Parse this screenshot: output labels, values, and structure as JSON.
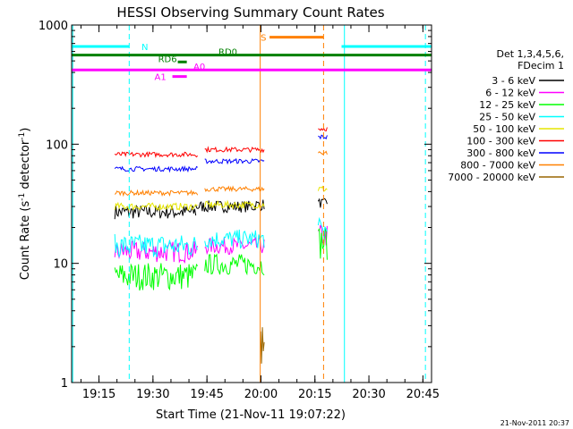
{
  "chart_data": {
    "type": "line",
    "title": "HESSI Observing Summary Count Rates",
    "xlabel": "Start Time (21-Nov-11 19:07:22)",
    "ylabel_main": "Count Rate (s",
    "ylabel_sup1": "-1",
    "ylabel_mid": " detector",
    "ylabel_sup2": "-1",
    "ylabel_end": ")",
    "yscale": "log",
    "ylim": [
      1,
      1000
    ],
    "xlim_minutes": [
      0,
      100
    ],
    "x_unit": "minutes after 19:07:22",
    "x_ticks": [
      {
        "value": 7.6,
        "label": "19:15"
      },
      {
        "value": 22.6,
        "label": "19:30"
      },
      {
        "value": 37.6,
        "label": "19:45"
      },
      {
        "value": 52.6,
        "label": "20:00"
      },
      {
        "value": 67.6,
        "label": "20:15"
      },
      {
        "value": 82.6,
        "label": "20:30"
      },
      {
        "value": 97.6,
        "label": "20:45"
      }
    ],
    "y_ticks": [
      {
        "value": 1,
        "label": "1"
      },
      {
        "value": 10,
        "label": "10"
      },
      {
        "value": 100,
        "label": "100"
      },
      {
        "value": 1000,
        "label": "1000"
      }
    ],
    "legend_header": [
      "Det 1,3,4,5,6,",
      "FDecim 1"
    ],
    "legend_position": "right",
    "series": [
      {
        "name": "3 - 6 keV",
        "color": "#000000",
        "segments": [
          {
            "x0": 12,
            "x1": 34.5,
            "level": 27,
            "noise": 0.06
          },
          {
            "x0": 34.5,
            "x1": 51,
            "level": 30,
            "noise": 0.05
          },
          {
            "x0": 51,
            "x1": 53.5,
            "level": 31,
            "noise": 0.05
          },
          {
            "x0": 68.5,
            "x1": 71,
            "level": 32,
            "noise": 0.04
          }
        ]
      },
      {
        "name": "6 - 12 keV",
        "color": "#ff00ff",
        "segments": [
          {
            "x0": 12,
            "x1": 35,
            "level": 12.5,
            "noise": 0.09
          },
          {
            "x0": 37,
            "x1": 53.5,
            "level": 14,
            "noise": 0.07
          },
          {
            "x0": 68.5,
            "x1": 71,
            "level": 17,
            "noise": 0.1
          }
        ]
      },
      {
        "name": "12 - 25 keV",
        "color": "#00ff00",
        "segments": [
          {
            "x0": 12,
            "x1": 35,
            "level": 7.8,
            "noise": 0.12
          },
          {
            "x0": 37,
            "x1": 53.5,
            "level": 9.8,
            "noise": 0.09
          },
          {
            "x0": 68.5,
            "x1": 71,
            "level": 15,
            "noise": 0.15
          }
        ]
      },
      {
        "name": "25 - 50 keV",
        "color": "#00ffff",
        "segments": [
          {
            "x0": 12,
            "x1": 35,
            "level": 14,
            "noise": 0.1
          },
          {
            "x0": 37,
            "x1": 53.5,
            "level": 16,
            "noise": 0.08
          },
          {
            "x0": 68.5,
            "x1": 71,
            "level": 19,
            "noise": 0.1
          }
        ]
      },
      {
        "name": "50 - 100 keV",
        "color": "#e6e600",
        "segments": [
          {
            "x0": 12,
            "x1": 35,
            "level": 30,
            "noise": 0.03
          },
          {
            "x0": 37,
            "x1": 53.5,
            "level": 31,
            "noise": 0.03
          },
          {
            "x0": 68.5,
            "x1": 71,
            "level": 42,
            "noise": 0.03
          }
        ]
      },
      {
        "name": "100 - 300 keV",
        "color": "#ff0000",
        "segments": [
          {
            "x0": 12,
            "x1": 35,
            "level": 82,
            "noise": 0.02
          },
          {
            "x0": 37,
            "x1": 53.5,
            "level": 90,
            "noise": 0.02
          },
          {
            "x0": 68.5,
            "x1": 71,
            "level": 135,
            "noise": 0.02
          }
        ]
      },
      {
        "name": "300 - 800 keV",
        "color": "#0000ff",
        "segments": [
          {
            "x0": 12,
            "x1": 35,
            "level": 62,
            "noise": 0.02
          },
          {
            "x0": 37,
            "x1": 53.5,
            "level": 72,
            "noise": 0.02
          },
          {
            "x0": 68.5,
            "x1": 71,
            "level": 115,
            "noise": 0.02
          }
        ]
      },
      {
        "name": "800 - 7000 keV",
        "color": "#ff8000",
        "segments": [
          {
            "x0": 12,
            "x1": 35,
            "level": 39,
            "noise": 0.02
          },
          {
            "x0": 37,
            "x1": 53.5,
            "level": 42,
            "noise": 0.02
          },
          {
            "x0": 68.5,
            "x1": 71,
            "level": 85,
            "noise": 0.02
          }
        ]
      },
      {
        "name": "7000 - 20000 keV",
        "color": "#996600",
        "segments": [
          {
            "x0": 52.5,
            "x1": 53.5,
            "level": 2.0,
            "noise": 0.2
          }
        ]
      }
    ],
    "flag_bars": [
      {
        "label": "N",
        "color": "#00ffff",
        "y": 660,
        "segments": [
          [
            0,
            16
          ],
          [
            75,
            100
          ]
        ]
      },
      {
        "label": "S",
        "color": "#ff8000",
        "y": 790,
        "segments": [
          [
            55,
            70
          ]
        ]
      },
      {
        "label": "RD0",
        "color": "#008000",
        "y": 560,
        "segments": [
          [
            0,
            100
          ]
        ]
      },
      {
        "label": "RD6",
        "color": "#008000",
        "y": 490,
        "segments": [
          [
            29.5,
            32
          ]
        ]
      },
      {
        "label": "A0",
        "color": "#ff00ff",
        "y": 420,
        "segments": [
          [
            0,
            100
          ]
        ]
      },
      {
        "label": "A1",
        "color": "#ff00ff",
        "y": 370,
        "segments": [
          [
            28,
            32
          ]
        ]
      }
    ],
    "vertical_markers": [
      {
        "x": 0.3,
        "color": "#00ffff",
        "style": "solid"
      },
      {
        "x": 16,
        "color": "#00ffff",
        "style": "dashed"
      },
      {
        "x": 52.4,
        "color": "#ff8000",
        "style": "solid"
      },
      {
        "x": 70,
        "color": "#ff8000",
        "style": "dashed"
      },
      {
        "x": 75.8,
        "color": "#00ffff",
        "style": "solid"
      },
      {
        "x": 98.3,
        "color": "#00ffff",
        "style": "dashed"
      }
    ],
    "footer_timestamp": "21-Nov-2011 20:37"
  }
}
